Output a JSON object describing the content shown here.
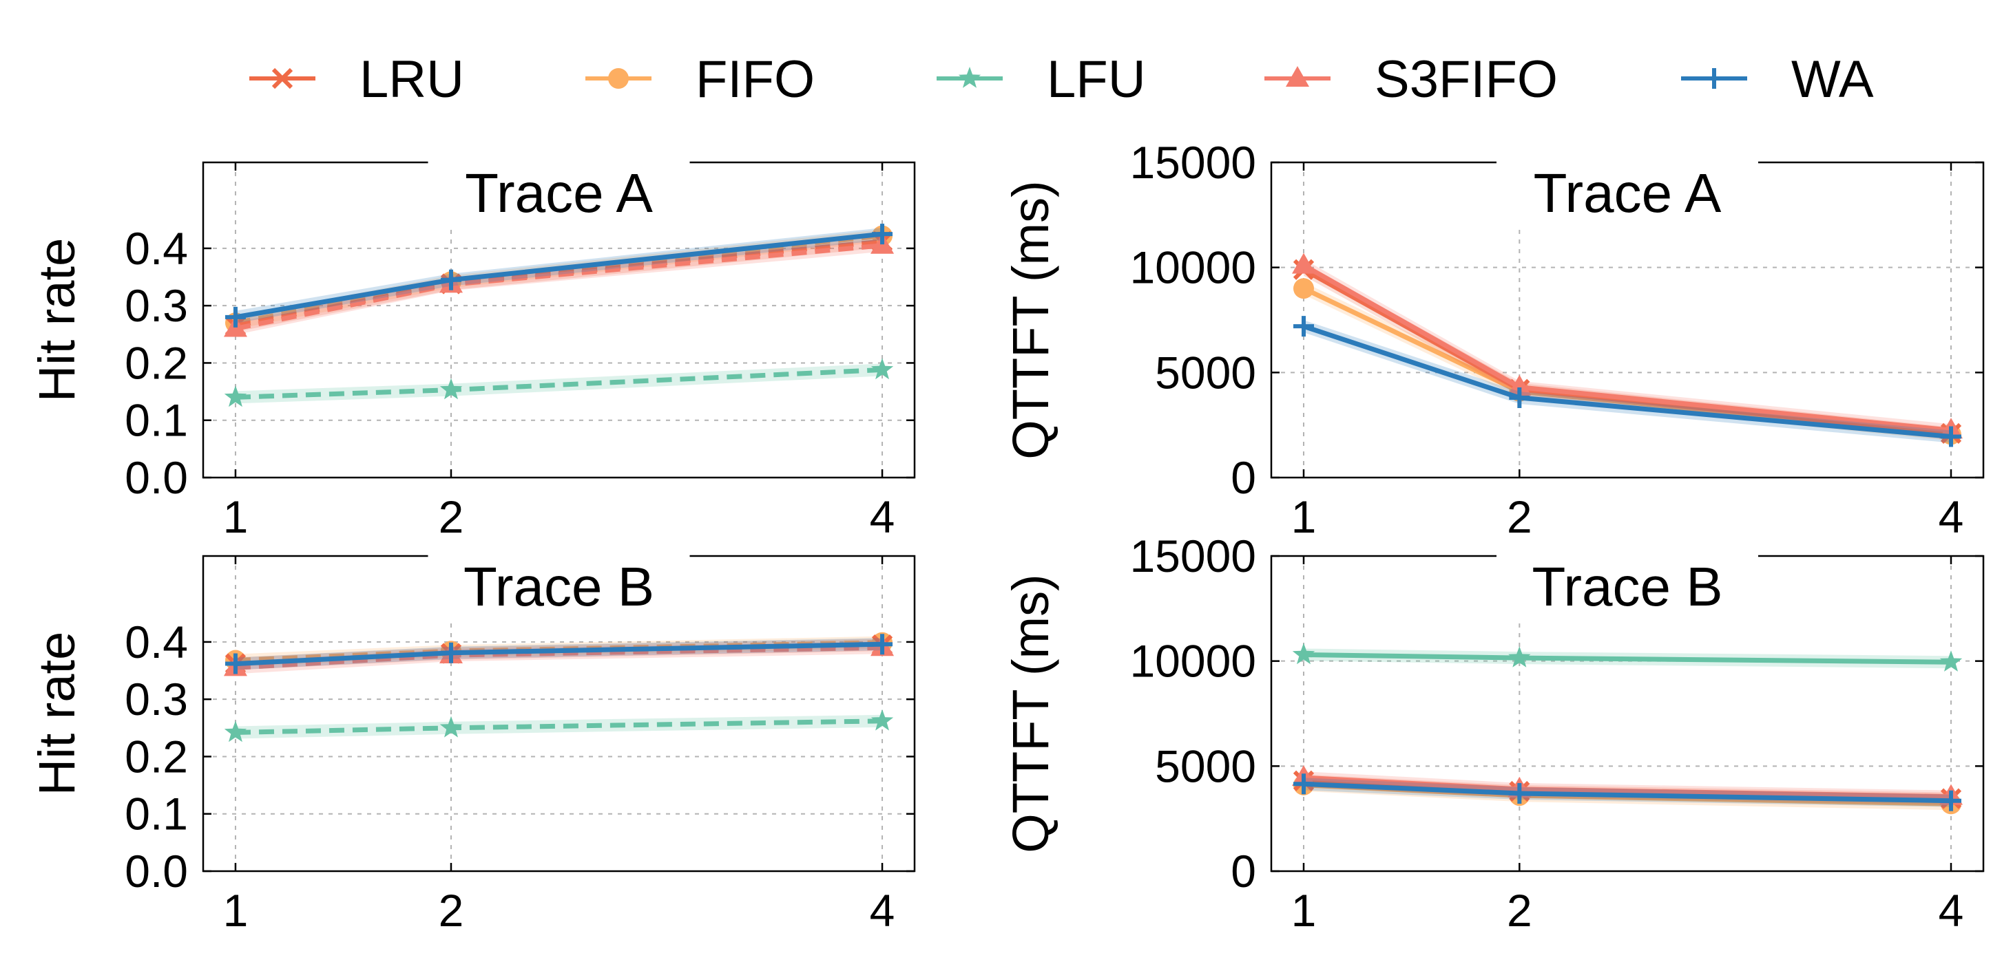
{
  "colors": {
    "LRU": "#ef6a46",
    "FIFO": "#fdae61",
    "LFU": "#66c2a5",
    "S3FIFO": "#f47c6c",
    "WA": "#2b7bba"
  },
  "legend": [
    {
      "name": "LRU",
      "marker": "x",
      "dashed": false
    },
    {
      "name": "FIFO",
      "marker": "circle",
      "dashed": false
    },
    {
      "name": "LFU",
      "marker": "star",
      "dashed": false
    },
    {
      "name": "S3FIFO",
      "marker": "triangle",
      "dashed": false
    },
    {
      "name": "WA",
      "marker": "plus",
      "dashed": false
    }
  ],
  "chart_data": [
    {
      "id": "hit-rate-trace-a",
      "type": "line",
      "title": "Trace A",
      "ylabel": "Hit rate",
      "xlabel": "",
      "x": [
        1,
        2,
        4
      ],
      "xticks": [
        "1",
        "2",
        "4"
      ],
      "ylim": [
        0,
        0.55
      ],
      "yticks": [
        "0.0",
        "0.1",
        "0.2",
        "0.3",
        "0.4"
      ],
      "ytick_values": [
        0,
        0.1,
        0.2,
        0.3,
        0.4
      ],
      "grid": true,
      "dashed": true,
      "series": [
        {
          "name": "LRU",
          "values": [
            0.265,
            0.338,
            0.412
          ]
        },
        {
          "name": "FIFO",
          "values": [
            0.27,
            0.342,
            0.422
          ]
        },
        {
          "name": "LFU",
          "values": [
            0.14,
            0.153,
            0.188
          ]
        },
        {
          "name": "S3FIFO",
          "values": [
            0.26,
            0.337,
            0.405
          ]
        },
        {
          "name": "WA",
          "values": [
            0.28,
            0.345,
            0.425
          ]
        }
      ]
    },
    {
      "id": "qttft-trace-a",
      "type": "line",
      "title": "Trace A",
      "ylabel": "QTTFT (ms)",
      "xlabel": "",
      "x": [
        1,
        2,
        4
      ],
      "xticks": [
        "1",
        "2",
        "4"
      ],
      "ylim": [
        0,
        15000
      ],
      "yticks": [
        "0",
        "5000",
        "10000",
        "15000"
      ],
      "ytick_values": [
        0,
        5000,
        10000,
        15000
      ],
      "grid": true,
      "dashed": false,
      "series": [
        {
          "name": "LRU",
          "values": [
            9900,
            4200,
            2100
          ]
        },
        {
          "name": "FIFO",
          "values": [
            9000,
            4100,
            2050
          ]
        },
        {
          "name": "LFU",
          "values": [
            null,
            null,
            null
          ]
        },
        {
          "name": "S3FIFO",
          "values": [
            10100,
            4300,
            2250
          ]
        },
        {
          "name": "WA",
          "values": [
            7200,
            3800,
            1950
          ]
        }
      ]
    },
    {
      "id": "hit-rate-trace-b",
      "type": "line",
      "title": "Trace B",
      "ylabel": "Hit rate",
      "xlabel": "",
      "x": [
        1,
        2,
        4
      ],
      "xticks": [
        "1",
        "2",
        "4"
      ],
      "ylim": [
        0,
        0.55
      ],
      "yticks": [
        "0.0",
        "0.1",
        "0.2",
        "0.3",
        "0.4"
      ],
      "ytick_values": [
        0,
        0.1,
        0.2,
        0.3,
        0.4
      ],
      "grid": true,
      "dashed": true,
      "series": [
        {
          "name": "LRU",
          "values": [
            0.362,
            0.38,
            0.395
          ]
        },
        {
          "name": "FIFO",
          "values": [
            0.368,
            0.384,
            0.399
          ]
        },
        {
          "name": "LFU",
          "values": [
            0.242,
            0.25,
            0.262
          ]
        },
        {
          "name": "S3FIFO",
          "values": [
            0.355,
            0.377,
            0.39
          ]
        },
        {
          "name": "WA",
          "values": [
            0.362,
            0.381,
            0.396
          ]
        }
      ]
    },
    {
      "id": "qttft-trace-b",
      "type": "line",
      "title": "Trace B",
      "ylabel": "QTTFT (ms)",
      "xlabel": "",
      "x": [
        1,
        2,
        4
      ],
      "xticks": [
        "1",
        "2",
        "4"
      ],
      "ylim": [
        0,
        15000
      ],
      "yticks": [
        "0",
        "5000",
        "10000",
        "15000"
      ],
      "ytick_values": [
        0,
        5000,
        10000,
        15000
      ],
      "grid": true,
      "dashed": false,
      "series": [
        {
          "name": "LRU",
          "values": [
            4300,
            3800,
            3450
          ]
        },
        {
          "name": "FIFO",
          "values": [
            4100,
            3600,
            3200
          ]
        },
        {
          "name": "LFU",
          "values": [
            10300,
            10150,
            9950
          ]
        },
        {
          "name": "S3FIFO",
          "values": [
            4450,
            3900,
            3550
          ]
        },
        {
          "name": "WA",
          "values": [
            4150,
            3700,
            3350
          ]
        }
      ]
    }
  ]
}
